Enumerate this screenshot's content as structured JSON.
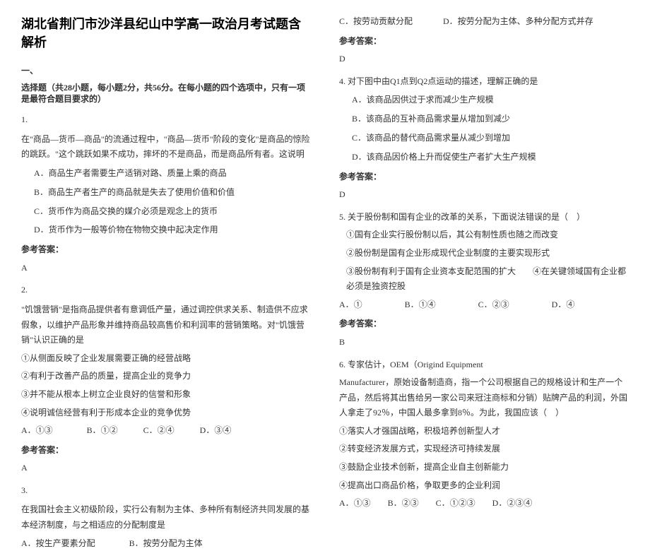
{
  "title": "湖北省荆门市沙洋县纪山中学高一政治月考试题含解析",
  "section1_label": "一、",
  "instruction": "选择题（共28小题，每小题2分，共56分。在每小题的四个选项中，只有一项是最符合题目要求的）",
  "q1": {
    "num": "1.",
    "text": "在\"商品—货币—商品\"的流通过程中，\"商品—货币\"阶段的变化\"是商品的惊险的跳跃。\"这个跳跃如果不成功，摔坏的不是商品，而是商品所有者。这说明",
    "a": "A．商品生产者需要生产适销对路、质量上乘的商品",
    "b": "B．商品生产者生产的商品就是失去了使用价值和价值",
    "c": "C．货币作为商品交换的媒介必须是观念上的货币",
    "d": "D．货币作为一般等价物在物物交换中起决定作用",
    "answer_label": "参考答案：",
    "answer": "A"
  },
  "q2": {
    "num": "2.",
    "text": "\"饥饿营销\"是指商品提供者有意调低产量，通过调控供求关系、制造供不应求假象，以维护产品形象并维持商品较高售价和利润率的营销策略。对\"饥饿营销\"认识正确的是",
    "i1": "①从侧面反映了企业发展需要正确的经营战略",
    "i2": "②有利于改善产品的质量，提高企业的竞争力",
    "i3": "③并不能从根本上树立企业良好的信誉和形象",
    "i4": "④说明诚信经营有利于形成本企业的竞争优势",
    "opts": "A．①③　　　　B．①②　　　C．②④　　　D．③④",
    "answer_label": "参考答案：",
    "answer": "A"
  },
  "q3": {
    "num": "3.",
    "text": "在我国社会主义初级阶段，实行公有制为主体、多种所有制经济共同发展的基本经济制度，与之相适应的分配制度是",
    "ab": "A．按生产要素分配　　　　B．按劳分配为主体",
    "c": "C．按劳动贡献分配",
    "d": "D．按劳分配为主体、多种分配方式并存",
    "answer_label": "参考答案：",
    "answer": "D"
  },
  "q4": {
    "num": "4.",
    "text": "对下图中由Q1点到Q2点运动的描述，理解正确的是",
    "a": "A．该商品因供过于求而减少生产规模",
    "b": "B．该商品的互补商品需求量从增加到减少",
    "c": "C．该商品的替代商品需求量从减少到增加",
    "d": "D．该商品因价格上升而促使生产者扩大生产规模",
    "answer_label": "参考答案：",
    "answer": "D"
  },
  "q5": {
    "num": "5.",
    "text": "关于股份制和国有企业的改革的关系，下面说法错误的是（　）",
    "i1": "①国有企业实行股份制以后，其公有制性质也随之而改变",
    "i2": "②股份制是国有企业形成现代企业制度的主要实现形式",
    "i3": "③股份制有利于国有企业资本支配范围的扩大　　④在关键领域国有企业都必须是独资控股",
    "opts": "A．①　　　　　B．①④　　　　　C．②③　　　　　D．④",
    "answer_label": "参考答案：",
    "answer": "B"
  },
  "q6": {
    "num": "6.",
    "text1": "专家估计，OEM（Origind Equipment",
    "text2": "Manufacturer，原始设备制造商，指一个公司根据自己的规格设计和生产一个产品，然后将其出售给另一家公司来冠注商标和分销）贴牌产品的利润，外国人拿走了92％，中国人最多拿到8％。为此，我国应该（　）",
    "i1": "①落实人才强国战略，积极培养创新型人才",
    "i2": "②转变经济发展方式，实现经济可持续发展",
    "i3": "③鼓励企业技术创新，提高企业自主创新能力",
    "i4": "④提高出口商品价格，争取更多的企业利润",
    "opts": "A．①③　　B．②③　　C．①②③　　D．②③④"
  }
}
